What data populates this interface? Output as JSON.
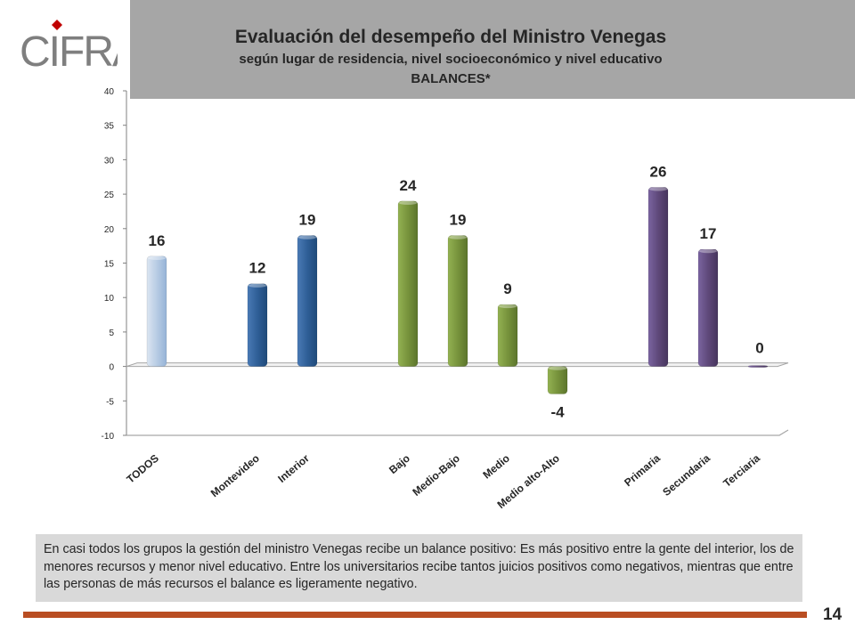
{
  "header": {
    "logo_text": "CIFRA",
    "title": "Evaluación del desempeño del Ministro Venegas",
    "subtitle": "según  lugar de residencia, nivel socioeconómico y nivel educativo",
    "subtitle2": "BALANCES*"
  },
  "chart_data": {
    "type": "bar",
    "categories": [
      "TODOS",
      "Montevideo",
      "Interior",
      "Bajo",
      "Medio-Bajo",
      "Medio",
      "Medio alto-Alto",
      "Primaria",
      "Secundaria",
      "Terciaria"
    ],
    "values": [
      16,
      12,
      19,
      24,
      19,
      9,
      -4,
      26,
      17,
      0
    ],
    "data_labels": [
      "16",
      "12",
      "19",
      "24",
      "19",
      "9",
      "-4",
      "26",
      "17",
      "0"
    ],
    "ylim": [
      -10,
      40
    ],
    "yticks": [
      40,
      35,
      30,
      25,
      20,
      15,
      10,
      5,
      0,
      -5,
      -10
    ],
    "ytick_labels": [
      "40",
      "35",
      "30",
      "25",
      "20",
      "15",
      "10",
      "5",
      "0",
      "-5",
      "-10"
    ],
    "grid": false,
    "colors": [
      "#b8cce4",
      "#2f5f97",
      "#2f5f97",
      "#77933c",
      "#77933c",
      "#77933c",
      "#77933c",
      "#5f497a",
      "#5f497a",
      "#5f497a"
    ]
  },
  "note": "En casi todos los grupos la gestión del ministro Venegas recibe un balance positivo: Es más positivo entre la gente del interior, los de menores recursos y menor nivel educativo. Entre los universitarios recibe tantos juicios positivos como negativos, mientras que entre las personas de más recursos el balance es ligeramente negativo.",
  "page_number": "14",
  "colors": {
    "header_band": "#a6a6a6",
    "footer_line": "#b94e22",
    "logo_accent": "#c00000"
  }
}
